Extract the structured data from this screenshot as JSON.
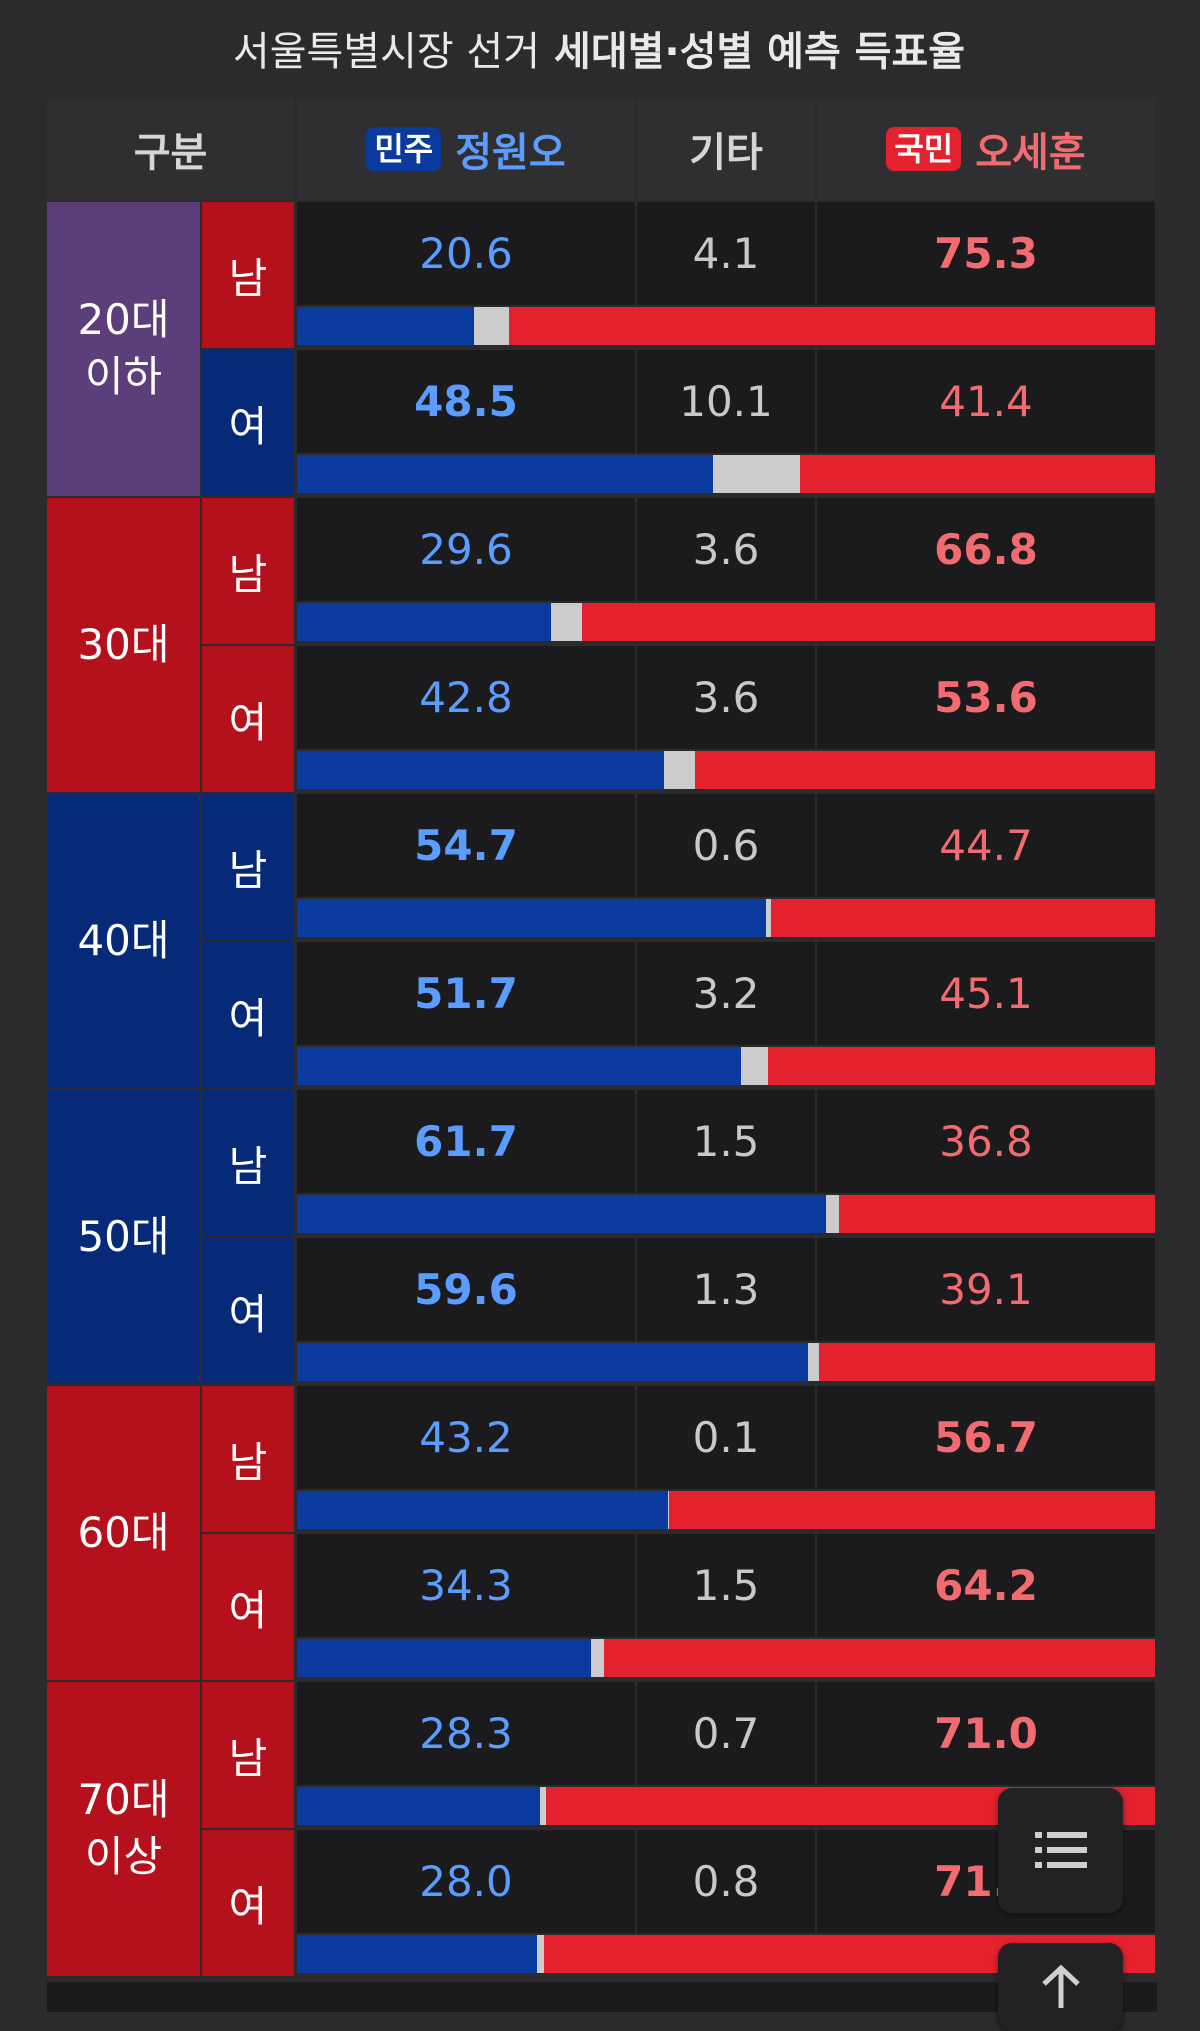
{
  "chart_data": {
    "type": "table",
    "title": "서울특별시장 선거",
    "title_bold": "세대별·성별 예측 득표율",
    "header": {
      "category": "구분",
      "c1": {
        "party": "민주",
        "name": "정원오",
        "color": "#0a3a9e",
        "text_color": "#5b9dff"
      },
      "c2": {
        "name": "기타",
        "color": "#cccccc"
      },
      "c3": {
        "party": "국민",
        "name": "오세훈",
        "color": "#e4212e",
        "text_color": "#f26b70"
      }
    },
    "groups": [
      {
        "age": "20대\n이하",
        "color": "#5b3e7a",
        "rows": [
          {
            "sex": "남",
            "sex_color": "#b5111d",
            "values": [
              20.6,
              4.1,
              75.3
            ],
            "labels": [
              "20.6",
              "4.1",
              "75.3"
            ]
          },
          {
            "sex": "여",
            "sex_color": "#072a78",
            "values": [
              48.5,
              10.1,
              41.4
            ],
            "labels": [
              "48.5",
              "10.1",
              "41.4"
            ]
          }
        ]
      },
      {
        "age": "30대",
        "color": "#b5111d",
        "rows": [
          {
            "sex": "남",
            "sex_color": "#b5111d",
            "values": [
              29.6,
              3.6,
              66.8
            ],
            "labels": [
              "29.6",
              "3.6",
              "66.8"
            ]
          },
          {
            "sex": "여",
            "sex_color": "#b5111d",
            "values": [
              42.8,
              3.6,
              53.6
            ],
            "labels": [
              "42.8",
              "3.6",
              "53.6"
            ]
          }
        ]
      },
      {
        "age": "40대",
        "color": "#072a78",
        "rows": [
          {
            "sex": "남",
            "sex_color": "#072a78",
            "values": [
              54.7,
              0.6,
              44.7
            ],
            "labels": [
              "54.7",
              "0.6",
              "44.7"
            ]
          },
          {
            "sex": "여",
            "sex_color": "#072a78",
            "values": [
              51.7,
              3.2,
              45.1
            ],
            "labels": [
              "51.7",
              "3.2",
              "45.1"
            ]
          }
        ]
      },
      {
        "age": "50대",
        "color": "#072a78",
        "rows": [
          {
            "sex": "남",
            "sex_color": "#072a78",
            "values": [
              61.7,
              1.5,
              36.8
            ],
            "labels": [
              "61.7",
              "1.5",
              "36.8"
            ]
          },
          {
            "sex": "여",
            "sex_color": "#072a78",
            "values": [
              59.6,
              1.3,
              39.1
            ],
            "labels": [
              "59.6",
              "1.3",
              "39.1"
            ]
          }
        ]
      },
      {
        "age": "60대",
        "color": "#b5111d",
        "rows": [
          {
            "sex": "남",
            "sex_color": "#b5111d",
            "values": [
              43.2,
              0.1,
              56.7
            ],
            "labels": [
              "43.2",
              "0.1",
              "56.7"
            ]
          },
          {
            "sex": "여",
            "sex_color": "#b5111d",
            "values": [
              34.3,
              1.5,
              64.2
            ],
            "labels": [
              "34.3",
              "1.5",
              "64.2"
            ]
          }
        ]
      },
      {
        "age": "70대\n이상",
        "color": "#b5111d",
        "rows": [
          {
            "sex": "남",
            "sex_color": "#b5111d",
            "values": [
              28.3,
              0.7,
              71.0
            ],
            "labels": [
              "28.3",
              "0.7",
              "71.0"
            ]
          },
          {
            "sex": "여",
            "sex_color": "#b5111d",
            "values": [
              28.0,
              0.8,
              71.2
            ],
            "labels": [
              "28.0",
              "0.8",
              "71.2"
            ]
          }
        ]
      }
    ]
  },
  "ui": {
    "list_button_icon": "list-icon",
    "top_button_icon": "arrow-up-icon"
  }
}
